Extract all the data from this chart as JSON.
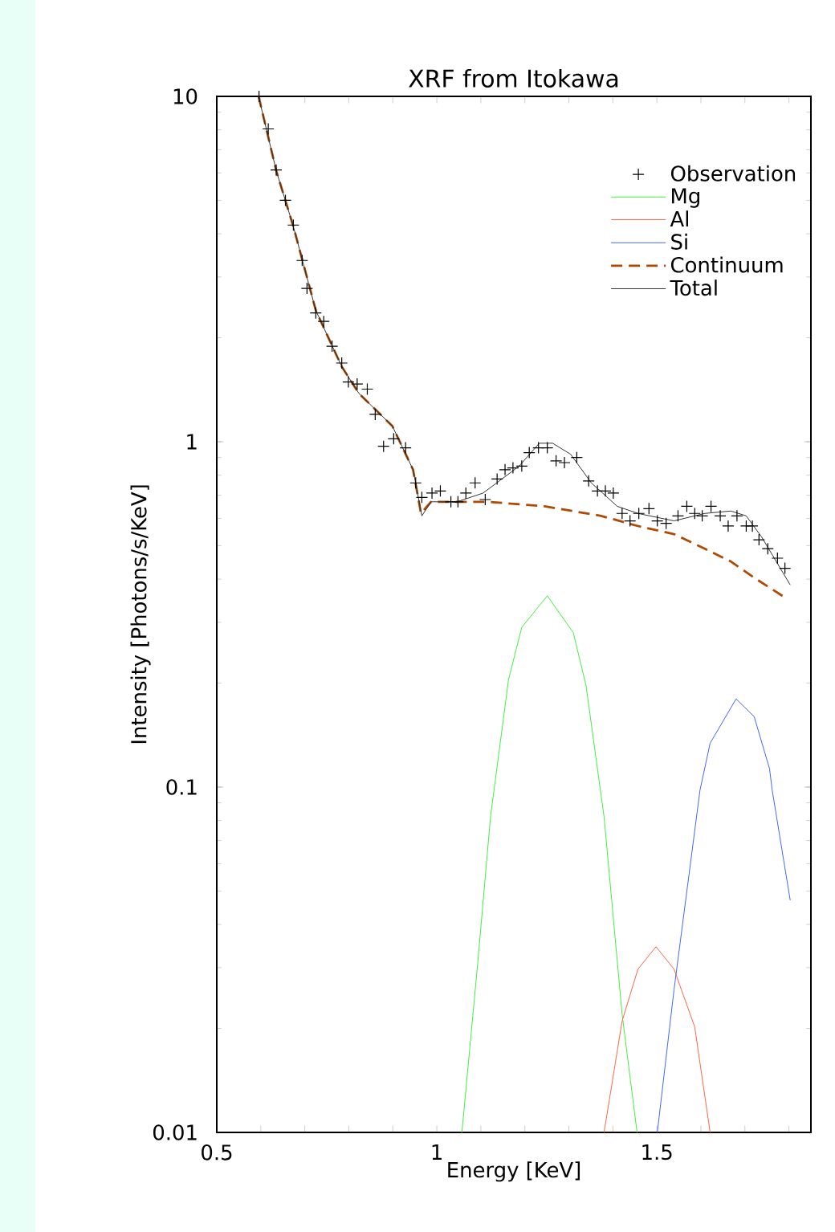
{
  "chart_data": {
    "type": "line",
    "title": "XRF from Itokawa",
    "xlabel": "Energy [KeV]",
    "ylabel": "Intensity [Photons/s/KeV]",
    "xlim": [
      0.5,
      1.85
    ],
    "ylim": [
      0.01,
      10
    ],
    "log": "y",
    "legend": "top right",
    "xticks": [
      0.5,
      {
        "value": 0.6,
        "label": null
      },
      {
        "value": 0.7,
        "label": null
      },
      {
        "value": 0.8,
        "label": null
      },
      {
        "value": 0.9,
        "label": null
      },
      1,
      {
        "value": 1.1,
        "label": null
      },
      {
        "value": 1.2,
        "label": null
      },
      {
        "value": 1.3,
        "label": null
      },
      {
        "value": 1.4,
        "label": null
      },
      1.5,
      {
        "value": 1.6,
        "label": null
      },
      {
        "value": 1.7,
        "label": null
      },
      {
        "value": 1.8,
        "label": null
      }
    ],
    "yticks": [
      0.01,
      0.1,
      1,
      10
    ],
    "series": [
      {
        "name": "Observation",
        "type": "scatter",
        "marker": "cross",
        "color": "#000000",
        "x": [
          0.596,
          0.617,
          0.635,
          0.656,
          0.674,
          0.694,
          0.705,
          0.725,
          0.743,
          0.762,
          0.784,
          0.799,
          0.819,
          0.842,
          0.86,
          0.879,
          0.902,
          0.929,
          0.952,
          0.966,
          0.989,
          1.008,
          1.032,
          1.048,
          1.066,
          1.087,
          1.11,
          1.137,
          1.155,
          1.173,
          1.193,
          1.21,
          1.231,
          1.251,
          1.271,
          1.29,
          1.318,
          1.345,
          1.365,
          1.383,
          1.401,
          1.421,
          1.439,
          1.459,
          1.482,
          1.501,
          1.521,
          1.548,
          1.568,
          1.586,
          1.603,
          1.623,
          1.644,
          1.662,
          1.682,
          1.703,
          1.717,
          1.732,
          1.752,
          1.774,
          1.791
        ],
        "values": [
          10,
          8.05,
          6.12,
          5.0,
          4.24,
          3.35,
          2.78,
          2.36,
          2.23,
          1.89,
          1.69,
          1.49,
          1.47,
          1.42,
          1.2,
          0.97,
          1.02,
          0.96,
          0.76,
          0.69,
          0.71,
          0.72,
          0.67,
          0.67,
          0.71,
          0.76,
          0.68,
          0.78,
          0.83,
          0.84,
          0.85,
          0.93,
          0.96,
          0.96,
          0.88,
          0.87,
          0.9,
          0.77,
          0.72,
          0.72,
          0.71,
          0.62,
          0.59,
          0.62,
          0.64,
          0.59,
          0.58,
          0.61,
          0.65,
          0.62,
          0.61,
          0.65,
          0.61,
          0.57,
          0.61,
          0.57,
          0.57,
          0.52,
          0.49,
          0.46,
          0.43
        ]
      },
      {
        "name": "Mg",
        "color": "#44ee44",
        "line_style": "solid",
        "x": [
          1.057,
          1.093,
          1.122,
          1.163,
          1.193,
          1.251,
          1.31,
          1.339,
          1.38,
          1.421,
          1.455
        ],
        "values": [
          0.01,
          0.031,
          0.082,
          0.205,
          0.29,
          0.358,
          0.28,
          0.197,
          0.082,
          0.022,
          0.01
        ]
      },
      {
        "name": "Al",
        "color": "#ff6644",
        "line_style": "solid",
        "x": [
          1.38,
          1.421,
          1.457,
          1.498,
          1.539,
          1.586,
          1.621
        ],
        "values": [
          0.01,
          0.021,
          0.0297,
          0.0345,
          0.0297,
          0.0202,
          0.01
        ]
      },
      {
        "name": "Si",
        "color": "#4466ff",
        "line_style": "solid",
        "x": [
          1.501,
          1.539,
          1.598,
          1.621,
          1.68,
          1.721,
          1.756,
          1.762,
          1.803
        ],
        "values": [
          0.01,
          0.0259,
          0.098,
          0.134,
          0.18,
          0.16,
          0.113,
          0.098,
          0.047
        ]
      },
      {
        "name": "Continuum",
        "color": "#b04a00",
        "line_style": "dashed",
        "x": [
          0.595,
          0.635,
          0.674,
          0.725,
          0.784,
          0.823,
          0.899,
          0.946,
          0.964,
          0.987,
          1.046,
          1.116,
          1.245,
          1.373,
          1.457,
          1.539,
          1.609,
          1.668,
          1.726,
          1.797
        ],
        "values": [
          10,
          6.1,
          4.2,
          2.4,
          1.65,
          1.38,
          1.11,
          0.83,
          0.62,
          0.67,
          0.67,
          0.67,
          0.65,
          0.61,
          0.57,
          0.54,
          0.49,
          0.45,
          0.4,
          0.35
        ]
      },
      {
        "name": "Total",
        "color": "#333333",
        "line_style": "solid",
        "x": [
          0.595,
          0.635,
          0.674,
          0.725,
          0.784,
          0.823,
          0.899,
          0.946,
          0.966,
          0.987,
          1.046,
          1.105,
          1.187,
          1.233,
          1.263,
          1.304,
          1.351,
          1.41,
          1.457,
          1.539,
          1.609,
          1.668,
          1.703,
          1.738,
          1.803
        ],
        "values": [
          10,
          6.1,
          4.2,
          2.4,
          1.65,
          1.38,
          1.11,
          0.83,
          0.61,
          0.67,
          0.67,
          0.71,
          0.85,
          0.99,
          0.99,
          0.92,
          0.76,
          0.65,
          0.62,
          0.59,
          0.62,
          0.63,
          0.61,
          0.53,
          0.385
        ]
      }
    ]
  }
}
